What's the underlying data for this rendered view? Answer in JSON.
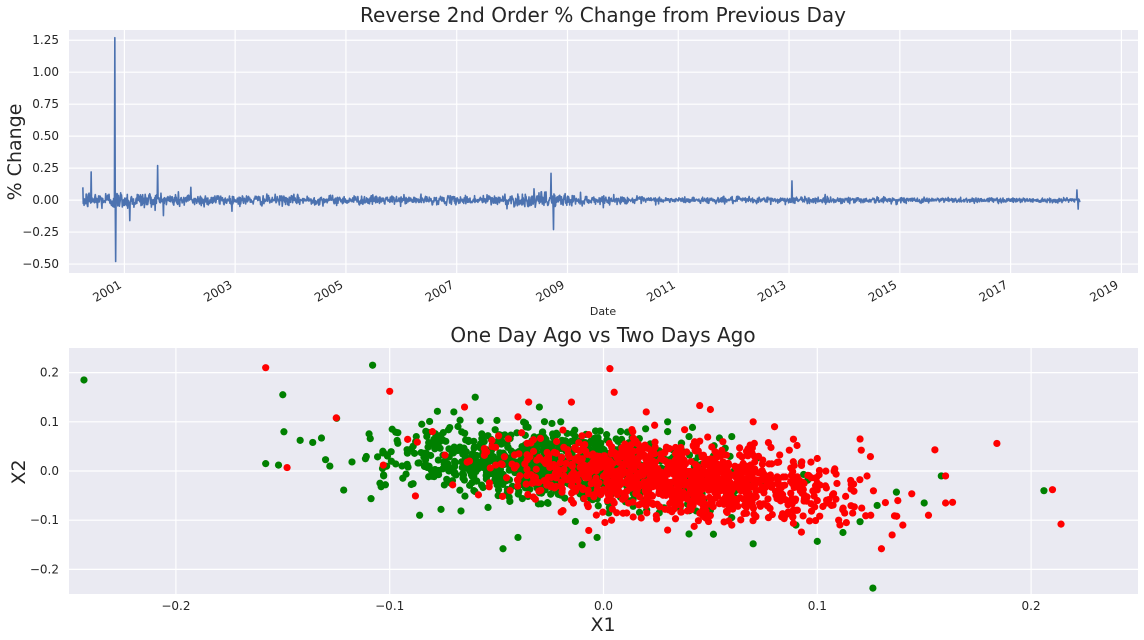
{
  "chart_data": [
    {
      "type": "line",
      "title": "Reverse 2nd Order % Change from Previous Day",
      "xlabel": "Date",
      "ylabel": "% Change",
      "xlim": [
        2000.0,
        2019.3
      ],
      "ylim": [
        -0.57,
        1.33
      ],
      "xticks": [
        2001,
        2003,
        2005,
        2007,
        2009,
        2011,
        2013,
        2015,
        2017,
        2019
      ],
      "xtick_labels": [
        "2001",
        "2003",
        "2005",
        "2007",
        "2009",
        "2011",
        "2013",
        "2015",
        "2017",
        "2019"
      ],
      "yticks": [
        -0.5,
        -0.25,
        0.0,
        0.25,
        0.5,
        0.75,
        1.0,
        1.25
      ],
      "ytick_labels": [
        "−0.50",
        "−0.25",
        "0.00",
        "0.25",
        "0.50",
        "0.75",
        "1.00",
        "1.25"
      ],
      "grid": true,
      "color": "#4c72b0",
      "x_start": 2000.25,
      "x_end": 2018.25,
      "amplitude_envelope": [
        {
          "x": 2000.25,
          "amp": 0.08
        },
        {
          "x": 2001.5,
          "amp": 0.07
        },
        {
          "x": 2003.0,
          "amp": 0.045
        },
        {
          "x": 2005.0,
          "amp": 0.04
        },
        {
          "x": 2007.0,
          "amp": 0.035
        },
        {
          "x": 2008.6,
          "amp": 0.07
        },
        {
          "x": 2009.5,
          "amp": 0.035
        },
        {
          "x": 2011.0,
          "amp": 0.025
        },
        {
          "x": 2013.0,
          "amp": 0.03
        },
        {
          "x": 2015.0,
          "amp": 0.025
        },
        {
          "x": 2018.25,
          "amp": 0.02
        }
      ],
      "spikes": [
        {
          "x": 2000.83,
          "y": 1.27
        },
        {
          "x": 2000.84,
          "y": -0.48
        },
        {
          "x": 2001.1,
          "y": -0.16
        },
        {
          "x": 2000.4,
          "y": 0.22
        },
        {
          "x": 2001.6,
          "y": 0.27
        },
        {
          "x": 2002.2,
          "y": 0.1
        },
        {
          "x": 2008.7,
          "y": 0.21
        },
        {
          "x": 2008.75,
          "y": -0.23
        },
        {
          "x": 2013.05,
          "y": 0.15
        },
        {
          "x": 2018.2,
          "y": 0.08
        },
        {
          "x": 2018.22,
          "y": -0.07
        }
      ]
    },
    {
      "type": "scatter",
      "title": "One Day Ago vs Two Days Ago",
      "xlabel": "X1",
      "ylabel": "X2",
      "xlim": [
        -0.25,
        0.25
      ],
      "ylim": [
        -0.25,
        0.25
      ],
      "xticks": [
        -0.2,
        -0.1,
        0.0,
        0.1,
        0.2
      ],
      "xtick_labels": [
        "−0.2",
        "−0.1",
        "0.0",
        "0.1",
        "0.2"
      ],
      "yticks": [
        -0.2,
        -0.1,
        0.0,
        0.1,
        0.2
      ],
      "ytick_labels": [
        "−0.2",
        "−0.1",
        "0.0",
        "0.1",
        "0.2"
      ],
      "grid": true,
      "series": [
        {
          "color": "#008000",
          "cluster_center": [
            -0.02,
            0.01
          ],
          "spread": [
            0.038,
            0.035
          ],
          "points": [
            [
              -0.243,
              0.185
            ],
            [
              -0.108,
              0.215
            ],
            [
              -0.15,
              0.155
            ],
            [
              -0.136,
              0.058
            ],
            [
              -0.158,
              0.015
            ],
            [
              -0.152,
              0.012
            ],
            [
              -0.13,
              0.023
            ],
            [
              -0.128,
              0.01
            ],
            [
              -0.104,
              -0.032
            ],
            [
              -0.102,
              -0.028
            ],
            [
              -0.086,
              -0.09
            ],
            [
              -0.076,
              -0.078
            ],
            [
              -0.047,
              -0.158
            ],
            [
              -0.04,
              -0.135
            ],
            [
              -0.01,
              -0.15
            ],
            [
              -0.003,
              -0.135
            ],
            [
              0.04,
              -0.128
            ],
            [
              0.07,
              -0.148
            ],
            [
              0.1,
              -0.143
            ],
            [
              0.112,
              -0.125
            ],
            [
              0.12,
              -0.103
            ],
            [
              0.128,
              -0.07
            ],
            [
              0.137,
              -0.043
            ],
            [
              0.15,
              -0.065
            ],
            [
              0.158,
              -0.01
            ],
            [
              0.206,
              -0.04
            ],
            [
              0.126,
              -0.238
            ],
            [
              -0.085,
              0.095
            ],
            [
              -0.07,
              0.12
            ],
            [
              -0.06,
              0.15
            ],
            [
              -0.03,
              0.13
            ],
            [
              -0.02,
              0.1
            ],
            [
              0.03,
              0.1
            ],
            [
              0.03,
              0.08
            ],
            [
              0.04,
              0.07
            ],
            [
              0.06,
              0.07
            ],
            [
              0.09,
              -0.11
            ],
            [
              0.05,
              -0.08
            ]
          ]
        },
        {
          "color": "#ff0000",
          "cluster_center": [
            0.035,
            -0.015
          ],
          "spread": [
            0.04,
            0.035
          ],
          "points": [
            [
              -0.158,
              0.21
            ],
            [
              -0.1,
              0.162
            ],
            [
              -0.148,
              0.007
            ],
            [
              -0.125,
              0.108
            ],
            [
              -0.103,
              0.012
            ],
            [
              0.003,
              0.208
            ],
            [
              0.005,
              0.16
            ],
            [
              0.045,
              0.133
            ],
            [
              0.05,
              0.125
            ],
            [
              0.12,
              0.065
            ],
            [
              0.155,
              0.043
            ],
            [
              0.16,
              -0.01
            ],
            [
              0.184,
              0.056
            ],
            [
              0.21,
              -0.038
            ],
            [
              0.214,
              -0.108
            ],
            [
              0.14,
              -0.11
            ],
            [
              0.13,
              -0.158
            ],
            [
              0.135,
              -0.13
            ],
            [
              0.125,
              -0.09
            ],
            [
              0.152,
              -0.09
            ],
            [
              0.11,
              -0.1
            ],
            [
              0.1,
              -0.06
            ],
            [
              -0.035,
              0.14
            ],
            [
              -0.015,
              0.14
            ],
            [
              -0.065,
              0.13
            ],
            [
              -0.08,
              0.08
            ],
            [
              0.07,
              0.1
            ],
            [
              0.08,
              0.09
            ],
            [
              -0.04,
              0.11
            ],
            [
              0.02,
              0.12
            ],
            [
              0.03,
              -0.12
            ],
            [
              0.06,
              -0.11
            ],
            [
              0.09,
              -0.08
            ]
          ]
        }
      ]
    }
  ]
}
